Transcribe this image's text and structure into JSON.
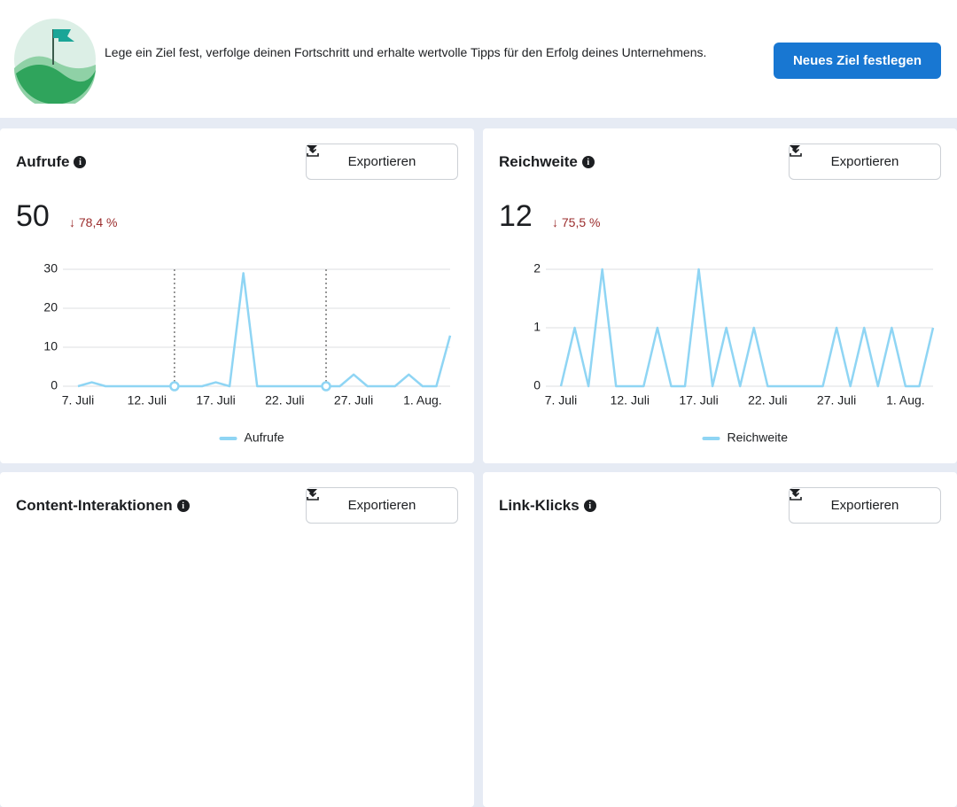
{
  "banner": {
    "text": "Lege ein Ziel fest, verfolge deinen Fortschritt und erhalte wertvolle Tipps für den Erfolg deines Unternehmens.",
    "button": "Neues Ziel festlegen"
  },
  "cards": [
    {
      "title": "Aufrufe",
      "export": "Exportieren",
      "total": "50",
      "change": "78,4 %",
      "chart_data": {
        "type": "line",
        "categories": [
          "7. Juli",
          null,
          null,
          null,
          null,
          "12. Juli",
          null,
          null,
          null,
          null,
          "17. Juli",
          null,
          null,
          null,
          null,
          "22. Juli",
          null,
          null,
          null,
          null,
          "27. Juli",
          null,
          null,
          null,
          null,
          "1. Aug.",
          null,
          null
        ],
        "series": [
          {
            "name": "Aufrufe",
            "color": "#8fd5f4",
            "values": [
              0,
              1,
              0,
              0,
              0,
              0,
              0,
              0,
              0,
              0,
              1,
              0,
              29,
              0,
              0,
              0,
              0,
              0,
              0,
              0,
              3,
              0,
              0,
              0,
              3,
              0,
              0,
              13
            ]
          }
        ],
        "markers": [
          7,
          18
        ],
        "ylim": [
          0,
          30
        ],
        "yticks": [
          0,
          10,
          20,
          30
        ],
        "grid": true,
        "legend": "bottom"
      }
    },
    {
      "title": "Reichweite",
      "export": "Exportieren",
      "total": "12",
      "change": "75,5 %",
      "chart_data": {
        "type": "line",
        "categories": [
          "7. Juli",
          null,
          null,
          null,
          null,
          "12. Juli",
          null,
          null,
          null,
          null,
          "17. Juli",
          null,
          null,
          null,
          null,
          "22. Juli",
          null,
          null,
          null,
          null,
          "27. Juli",
          null,
          null,
          null,
          null,
          "1. Aug.",
          null,
          null
        ],
        "series": [
          {
            "name": "Reichweite",
            "color": "#8fd5f4",
            "values": [
              0,
              1,
              0,
              2,
              0,
              0,
              0,
              1,
              0,
              0,
              2,
              0,
              1,
              0,
              1,
              0,
              0,
              0,
              0,
              0,
              1,
              0,
              1,
              0,
              1,
              0,
              0,
              1
            ]
          }
        ],
        "ylim": [
          0,
          2
        ],
        "yticks": [
          0,
          1,
          2
        ],
        "grid": true,
        "legend": "bottom"
      }
    },
    {
      "title": "Content-Interaktionen",
      "export": "Exportieren"
    },
    {
      "title": "Link-Klicks",
      "export": "Exportieren"
    }
  ]
}
